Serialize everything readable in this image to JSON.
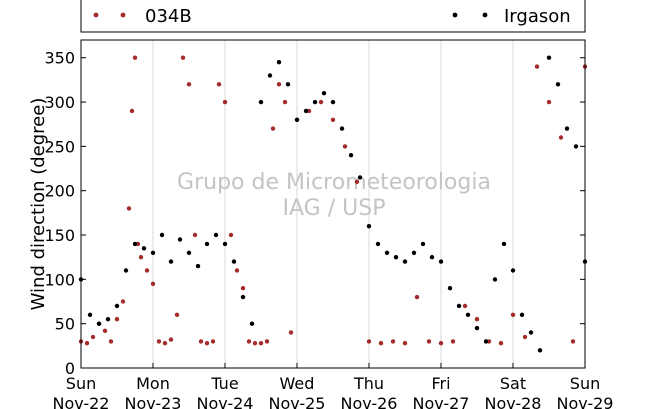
{
  "chart_data": {
    "type": "scatter",
    "title": "",
    "ylabel": "Wind direction (degree)",
    "xlabel": "",
    "ylim": [
      0,
      370
    ],
    "yticks": [
      0,
      50,
      100,
      150,
      200,
      250,
      300,
      350
    ],
    "x_range": [
      "2015-11-22",
      "2015-11-29"
    ],
    "x_ticks": [
      {
        "day": "Sun",
        "date": "Nov-22"
      },
      {
        "day": "Mon",
        "date": "Nov-23"
      },
      {
        "day": "Tue",
        "date": "Nov-24"
      },
      {
        "day": "Wed",
        "date": "Nov-25"
      },
      {
        "day": "Thu",
        "date": "Nov-26"
      },
      {
        "day": "Fri",
        "date": "Nov-27"
      },
      {
        "day": "Sat",
        "date": "Nov-28"
      },
      {
        "day": "Sun",
        "date": "Nov-29"
      }
    ],
    "grid": "vertical",
    "legend_position": "top",
    "watermark": [
      "Grupo de Micrometeorologia",
      "IAG / USP"
    ],
    "series": [
      {
        "name": "034B",
        "color": "#a52a2a",
        "points": [
          [
            "2015-11-22T00:00",
            30
          ],
          [
            "2015-11-22T02:00",
            28
          ],
          [
            "2015-11-22T04:00",
            35
          ],
          [
            "2015-11-22T06:00",
            50
          ],
          [
            "2015-11-22T08:00",
            42
          ],
          [
            "2015-11-22T10:00",
            30
          ],
          [
            "2015-11-22T12:00",
            55
          ],
          [
            "2015-11-22T14:00",
            75
          ],
          [
            "2015-11-22T16:00",
            180
          ],
          [
            "2015-11-22T17:00",
            290
          ],
          [
            "2015-11-22T18:00",
            350
          ],
          [
            "2015-11-22T19:00",
            140
          ],
          [
            "2015-11-22T20:00",
            125
          ],
          [
            "2015-11-22T22:00",
            110
          ],
          [
            "2015-11-23T00:00",
            95
          ],
          [
            "2015-11-23T02:00",
            30
          ],
          [
            "2015-11-23T04:00",
            28
          ],
          [
            "2015-11-23T06:00",
            32
          ],
          [
            "2015-11-23T08:00",
            60
          ],
          [
            "2015-11-23T10:00",
            350
          ],
          [
            "2015-11-23T12:00",
            320
          ],
          [
            "2015-11-23T14:00",
            150
          ],
          [
            "2015-11-23T16:00",
            30
          ],
          [
            "2015-11-23T18:00",
            28
          ],
          [
            "2015-11-23T20:00",
            30
          ],
          [
            "2015-11-23T22:00",
            320
          ],
          [
            "2015-11-24T00:00",
            300
          ],
          [
            "2015-11-24T02:00",
            150
          ],
          [
            "2015-11-24T04:00",
            110
          ],
          [
            "2015-11-24T06:00",
            90
          ],
          [
            "2015-11-24T08:00",
            30
          ],
          [
            "2015-11-24T10:00",
            28
          ],
          [
            "2015-11-24T12:00",
            28
          ],
          [
            "2015-11-24T14:00",
            30
          ],
          [
            "2015-11-24T16:00",
            270
          ],
          [
            "2015-11-24T18:00",
            320
          ],
          [
            "2015-11-24T20:00",
            300
          ],
          [
            "2015-11-24T22:00",
            40
          ],
          [
            "2015-11-25T00:00",
            280
          ],
          [
            "2015-11-25T04:00",
            290
          ],
          [
            "2015-11-25T08:00",
            300
          ],
          [
            "2015-11-25T12:00",
            280
          ],
          [
            "2015-11-25T16:00",
            250
          ],
          [
            "2015-11-25T20:00",
            210
          ],
          [
            "2015-11-26T00:00",
            30
          ],
          [
            "2015-11-26T04:00",
            28
          ],
          [
            "2015-11-26T08:00",
            30
          ],
          [
            "2015-11-26T12:00",
            28
          ],
          [
            "2015-11-26T16:00",
            80
          ],
          [
            "2015-11-26T20:00",
            30
          ],
          [
            "2015-11-27T00:00",
            28
          ],
          [
            "2015-11-27T04:00",
            30
          ],
          [
            "2015-11-27T08:00",
            70
          ],
          [
            "2015-11-27T12:00",
            55
          ],
          [
            "2015-11-27T16:00",
            30
          ],
          [
            "2015-11-27T20:00",
            28
          ],
          [
            "2015-11-28T00:00",
            60
          ],
          [
            "2015-11-28T04:00",
            35
          ],
          [
            "2015-11-28T08:00",
            340
          ],
          [
            "2015-11-28T12:00",
            300
          ],
          [
            "2015-11-28T16:00",
            260
          ],
          [
            "2015-11-28T20:00",
            30
          ],
          [
            "2015-11-29T00:00",
            340
          ]
        ]
      },
      {
        "name": "Irgason",
        "color": "#000000",
        "points": [
          [
            "2015-11-22T00:00",
            100
          ],
          [
            "2015-11-22T03:00",
            60
          ],
          [
            "2015-11-22T06:00",
            50
          ],
          [
            "2015-11-22T09:00",
            55
          ],
          [
            "2015-11-22T12:00",
            70
          ],
          [
            "2015-11-22T15:00",
            110
          ],
          [
            "2015-11-22T18:00",
            140
          ],
          [
            "2015-11-22T21:00",
            135
          ],
          [
            "2015-11-23T00:00",
            130
          ],
          [
            "2015-11-23T03:00",
            150
          ],
          [
            "2015-11-23T06:00",
            120
          ],
          [
            "2015-11-23T09:00",
            145
          ],
          [
            "2015-11-23T12:00",
            130
          ],
          [
            "2015-11-23T15:00",
            115
          ],
          [
            "2015-11-23T18:00",
            140
          ],
          [
            "2015-11-23T21:00",
            150
          ],
          [
            "2015-11-24T00:00",
            140
          ],
          [
            "2015-11-24T03:00",
            120
          ],
          [
            "2015-11-24T06:00",
            80
          ],
          [
            "2015-11-24T09:00",
            50
          ],
          [
            "2015-11-24T12:00",
            300
          ],
          [
            "2015-11-24T15:00",
            330
          ],
          [
            "2015-11-24T18:00",
            345
          ],
          [
            "2015-11-24T21:00",
            320
          ],
          [
            "2015-11-25T00:00",
            280
          ],
          [
            "2015-11-25T03:00",
            290
          ],
          [
            "2015-11-25T06:00",
            300
          ],
          [
            "2015-11-25T09:00",
            310
          ],
          [
            "2015-11-25T12:00",
            300
          ],
          [
            "2015-11-25T15:00",
            270
          ],
          [
            "2015-11-25T18:00",
            240
          ],
          [
            "2015-11-25T21:00",
            215
          ],
          [
            "2015-11-26T00:00",
            160
          ],
          [
            "2015-11-26T03:00",
            140
          ],
          [
            "2015-11-26T06:00",
            130
          ],
          [
            "2015-11-26T09:00",
            125
          ],
          [
            "2015-11-26T12:00",
            120
          ],
          [
            "2015-11-26T15:00",
            130
          ],
          [
            "2015-11-26T18:00",
            140
          ],
          [
            "2015-11-26T21:00",
            125
          ],
          [
            "2015-11-27T00:00",
            120
          ],
          [
            "2015-11-27T03:00",
            90
          ],
          [
            "2015-11-27T06:00",
            70
          ],
          [
            "2015-11-27T09:00",
            60
          ],
          [
            "2015-11-27T12:00",
            45
          ],
          [
            "2015-11-27T15:00",
            30
          ],
          [
            "2015-11-27T18:00",
            100
          ],
          [
            "2015-11-27T21:00",
            140
          ],
          [
            "2015-11-28T00:00",
            110
          ],
          [
            "2015-11-28T03:00",
            60
          ],
          [
            "2015-11-28T06:00",
            40
          ],
          [
            "2015-11-28T09:00",
            20
          ],
          [
            "2015-11-28T12:00",
            350
          ],
          [
            "2015-11-28T15:00",
            320
          ],
          [
            "2015-11-28T18:00",
            270
          ],
          [
            "2015-11-28T21:00",
            250
          ],
          [
            "2015-11-29T00:00",
            120
          ]
        ]
      }
    ]
  }
}
